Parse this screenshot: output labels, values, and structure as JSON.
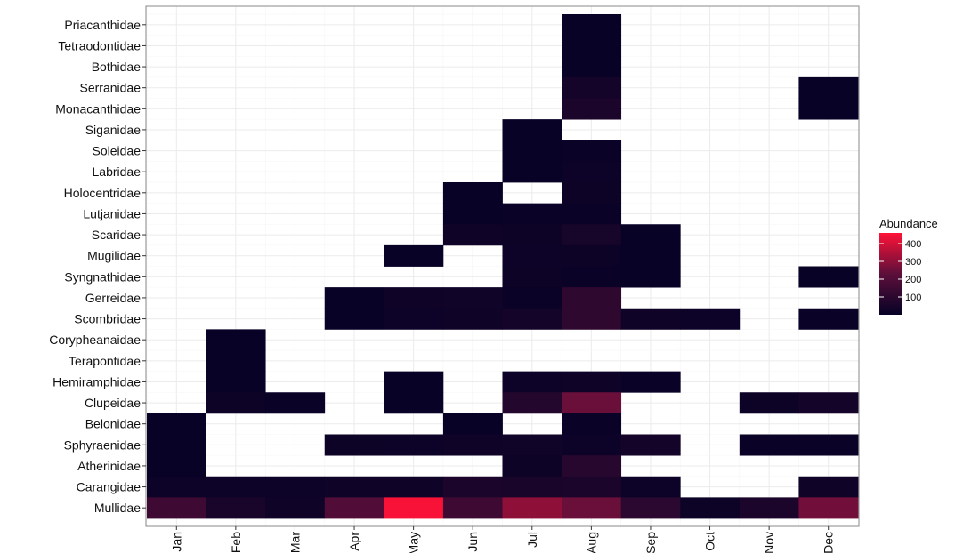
{
  "chart_data": {
    "type": "heatmap",
    "title": "",
    "xlabel": "",
    "ylabel": "",
    "x": [
      "Jan",
      "Feb",
      "Mar",
      "Apr",
      "May",
      "Jun",
      "Jul",
      "Aug",
      "Sep",
      "Oct",
      "Nov",
      "Dec"
    ],
    "y": [
      "Priacanthidae",
      "Tetraodontidae",
      "Bothidae",
      "Serranidae",
      "Monacanthidae",
      "Siganidae",
      "Soleidae",
      "Labridae",
      "Holocentridae",
      "Lutjanidae",
      "Scaridae",
      "Mugilidae",
      "Syngnathidae",
      "Gerreidae",
      "Scombridae",
      "Corypheanaidae",
      "Terapontidae",
      "Hemiramphidae",
      "Clupeidae",
      "Belonidae",
      "Sphyraenidae",
      "Atherinidae",
      "Carangidae",
      "Mullidae"
    ],
    "cells": [
      {
        "family": "Priacanthidae",
        "month": "Aug",
        "value": 5
      },
      {
        "family": "Tetraodontidae",
        "month": "Aug",
        "value": 5
      },
      {
        "family": "Bothidae",
        "month": "Aug",
        "value": 5
      },
      {
        "family": "Serranidae",
        "month": "Aug",
        "value": 40
      },
      {
        "family": "Serranidae",
        "month": "Dec",
        "value": 5
      },
      {
        "family": "Monacanthidae",
        "month": "Aug",
        "value": 60
      },
      {
        "family": "Monacanthidae",
        "month": "Dec",
        "value": 5
      },
      {
        "family": "Siganidae",
        "month": "Jul",
        "value": 5
      },
      {
        "family": "Soleidae",
        "month": "Jul",
        "value": 5
      },
      {
        "family": "Soleidae",
        "month": "Aug",
        "value": 10
      },
      {
        "family": "Labridae",
        "month": "Jul",
        "value": 5
      },
      {
        "family": "Labridae",
        "month": "Aug",
        "value": 20
      },
      {
        "family": "Holocentridae",
        "month": "Jun",
        "value": 5
      },
      {
        "family": "Holocentridae",
        "month": "Aug",
        "value": 15
      },
      {
        "family": "Lutjanidae",
        "month": "Jun",
        "value": 5
      },
      {
        "family": "Lutjanidae",
        "month": "Jul",
        "value": 10
      },
      {
        "family": "Lutjanidae",
        "month": "Aug",
        "value": 10
      },
      {
        "family": "Scaridae",
        "month": "Jun",
        "value": 25
      },
      {
        "family": "Scaridae",
        "month": "Jul",
        "value": 15
      },
      {
        "family": "Scaridae",
        "month": "Aug",
        "value": 45
      },
      {
        "family": "Scaridae",
        "month": "Sep",
        "value": 5
      },
      {
        "family": "Mugilidae",
        "month": "May",
        "value": 5
      },
      {
        "family": "Mugilidae",
        "month": "Jul",
        "value": 20
      },
      {
        "family": "Mugilidae",
        "month": "Aug",
        "value": 15
      },
      {
        "family": "Mugilidae",
        "month": "Sep",
        "value": 5
      },
      {
        "family": "Syngnathidae",
        "month": "Jul",
        "value": 15
      },
      {
        "family": "Syngnathidae",
        "month": "Aug",
        "value": 10
      },
      {
        "family": "Syngnathidae",
        "month": "Sep",
        "value": 5
      },
      {
        "family": "Syngnathidae",
        "month": "Dec",
        "value": 5
      },
      {
        "family": "Gerreidae",
        "month": "Apr",
        "value": 5
      },
      {
        "family": "Gerreidae",
        "month": "May",
        "value": 25
      },
      {
        "family": "Gerreidae",
        "month": "Jun",
        "value": 30
      },
      {
        "family": "Gerreidae",
        "month": "Jul",
        "value": 10
      },
      {
        "family": "Gerreidae",
        "month": "Aug",
        "value": 110
      },
      {
        "family": "Scombridae",
        "month": "Apr",
        "value": 5
      },
      {
        "family": "Scombridae",
        "month": "May",
        "value": 20
      },
      {
        "family": "Scombridae",
        "month": "Jun",
        "value": 25
      },
      {
        "family": "Scombridae",
        "month": "Jul",
        "value": 40
      },
      {
        "family": "Scombridae",
        "month": "Aug",
        "value": 110
      },
      {
        "family": "Scombridae",
        "month": "Sep",
        "value": 25
      },
      {
        "family": "Scombridae",
        "month": "Oct",
        "value": 20
      },
      {
        "family": "Scombridae",
        "month": "Dec",
        "value": 10
      },
      {
        "family": "Corypheanaidae",
        "month": "Feb",
        "value": 5
      },
      {
        "family": "Terapontidae",
        "month": "Feb",
        "value": 5
      },
      {
        "family": "Hemiramphidae",
        "month": "Feb",
        "value": 5
      },
      {
        "family": "Hemiramphidae",
        "month": "May",
        "value": 5
      },
      {
        "family": "Hemiramphidae",
        "month": "Jul",
        "value": 20
      },
      {
        "family": "Hemiramphidae",
        "month": "Aug",
        "value": 25
      },
      {
        "family": "Hemiramphidae",
        "month": "Sep",
        "value": 10
      },
      {
        "family": "Clupeidae",
        "month": "Feb",
        "value": 15
      },
      {
        "family": "Clupeidae",
        "month": "Mar",
        "value": 10
      },
      {
        "family": "Clupeidae",
        "month": "May",
        "value": 5
      },
      {
        "family": "Clupeidae",
        "month": "Jul",
        "value": 80
      },
      {
        "family": "Clupeidae",
        "month": "Aug",
        "value": 250
      },
      {
        "family": "Clupeidae",
        "month": "Nov",
        "value": 15
      },
      {
        "family": "Clupeidae",
        "month": "Dec",
        "value": 40
      },
      {
        "family": "Belonidae",
        "month": "Jan",
        "value": 5
      },
      {
        "family": "Belonidae",
        "month": "Jun",
        "value": 5
      },
      {
        "family": "Belonidae",
        "month": "Aug",
        "value": 10
      },
      {
        "family": "Sphyraenidae",
        "month": "Jan",
        "value": 5
      },
      {
        "family": "Sphyraenidae",
        "month": "Apr",
        "value": 15
      },
      {
        "family": "Sphyraenidae",
        "month": "May",
        "value": 20
      },
      {
        "family": "Sphyraenidae",
        "month": "Jun",
        "value": 25
      },
      {
        "family": "Sphyraenidae",
        "month": "Jul",
        "value": 30
      },
      {
        "family": "Sphyraenidae",
        "month": "Aug",
        "value": 20
      },
      {
        "family": "Sphyraenidae",
        "month": "Sep",
        "value": 40
      },
      {
        "family": "Sphyraenidae",
        "month": "Nov",
        "value": 10
      },
      {
        "family": "Sphyraenidae",
        "month": "Dec",
        "value": 10
      },
      {
        "family": "Atherinidae",
        "month": "Jan",
        "value": 5
      },
      {
        "family": "Atherinidae",
        "month": "Jul",
        "value": 15
      },
      {
        "family": "Atherinidae",
        "month": "Aug",
        "value": 90
      },
      {
        "family": "Carangidae",
        "month": "Jan",
        "value": 20
      },
      {
        "family": "Carangidae",
        "month": "Feb",
        "value": 20
      },
      {
        "family": "Carangidae",
        "month": "Mar",
        "value": 20
      },
      {
        "family": "Carangidae",
        "month": "Apr",
        "value": 25
      },
      {
        "family": "Carangidae",
        "month": "May",
        "value": 25
      },
      {
        "family": "Carangidae",
        "month": "Jun",
        "value": 60
      },
      {
        "family": "Carangidae",
        "month": "Jul",
        "value": 50
      },
      {
        "family": "Carangidae",
        "month": "Aug",
        "value": 60
      },
      {
        "family": "Carangidae",
        "month": "Sep",
        "value": 20
      },
      {
        "family": "Carangidae",
        "month": "Dec",
        "value": 25
      },
      {
        "family": "Mullidae",
        "month": "Jan",
        "value": 150
      },
      {
        "family": "Mullidae",
        "month": "Feb",
        "value": 50
      },
      {
        "family": "Mullidae",
        "month": "Mar",
        "value": 25
      },
      {
        "family": "Mullidae",
        "month": "Apr",
        "value": 200
      },
      {
        "family": "Mullidae",
        "month": "May",
        "value": 450
      },
      {
        "family": "Mullidae",
        "month": "Jun",
        "value": 150
      },
      {
        "family": "Mullidae",
        "month": "Jul",
        "value": 300
      },
      {
        "family": "Mullidae",
        "month": "Aug",
        "value": 250
      },
      {
        "family": "Mullidae",
        "month": "Sep",
        "value": 100
      },
      {
        "family": "Mullidae",
        "month": "Oct",
        "value": 15
      },
      {
        "family": "Mullidae",
        "month": "Nov",
        "value": 60
      },
      {
        "family": "Mullidae",
        "month": "Dec",
        "value": 260
      }
    ],
    "legend": {
      "title": "Abundance",
      "ticks": [
        100,
        200,
        300,
        400
      ],
      "min": 0,
      "max": 460,
      "position": "right"
    },
    "colors": {
      "low": "#060226",
      "mid": "#5c0f3a",
      "high": "#ff1237",
      "grid": "#ebebeb",
      "panel_border": "#888888",
      "missing": "#ffffff"
    },
    "grid": true
  }
}
